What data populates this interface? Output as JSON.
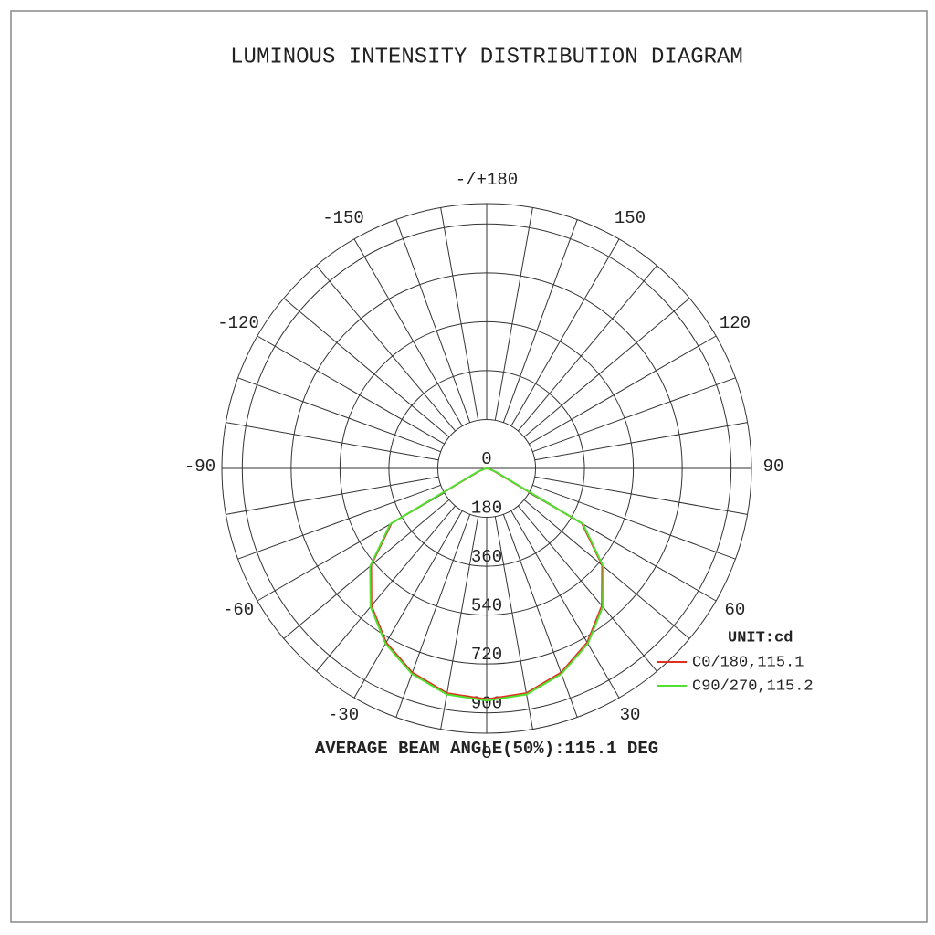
{
  "chart_data": {
    "type": "polar",
    "title": "LUMINOUS INTENSITY DISTRIBUTION DIAGRAM",
    "angles": [
      -90,
      -80,
      -70,
      -60,
      -50,
      -40,
      -30,
      -20,
      -10,
      0,
      10,
      20,
      30,
      40,
      50,
      60,
      70,
      80,
      90
    ],
    "series": [
      {
        "name": "C0/180,115.1",
        "color": "#e03020",
        "values": [
          0,
          5,
          30,
          405,
          555,
          660,
          740,
          800,
          840,
          850,
          840,
          800,
          740,
          660,
          555,
          405,
          30,
          5,
          0
        ]
      },
      {
        "name": "C90/270,115.2",
        "color": "#50e030",
        "values": [
          0,
          5,
          35,
          410,
          560,
          665,
          745,
          805,
          845,
          855,
          845,
          805,
          745,
          665,
          560,
          410,
          35,
          5,
          0
        ]
      }
    ],
    "rlim": [
      0,
      975
    ],
    "rticks": [
      0,
      180,
      360,
      540,
      720,
      900
    ],
    "angle_ticks": [
      0,
      30,
      60,
      90,
      120,
      150,
      {
        "value": 180,
        "label": "-/+180"
      },
      -150,
      -120,
      -90,
      -60,
      -30
    ],
    "unit": "UNIT:cd",
    "footer": "AVERAGE BEAM ANGLE(50%):115.1 DEG"
  }
}
